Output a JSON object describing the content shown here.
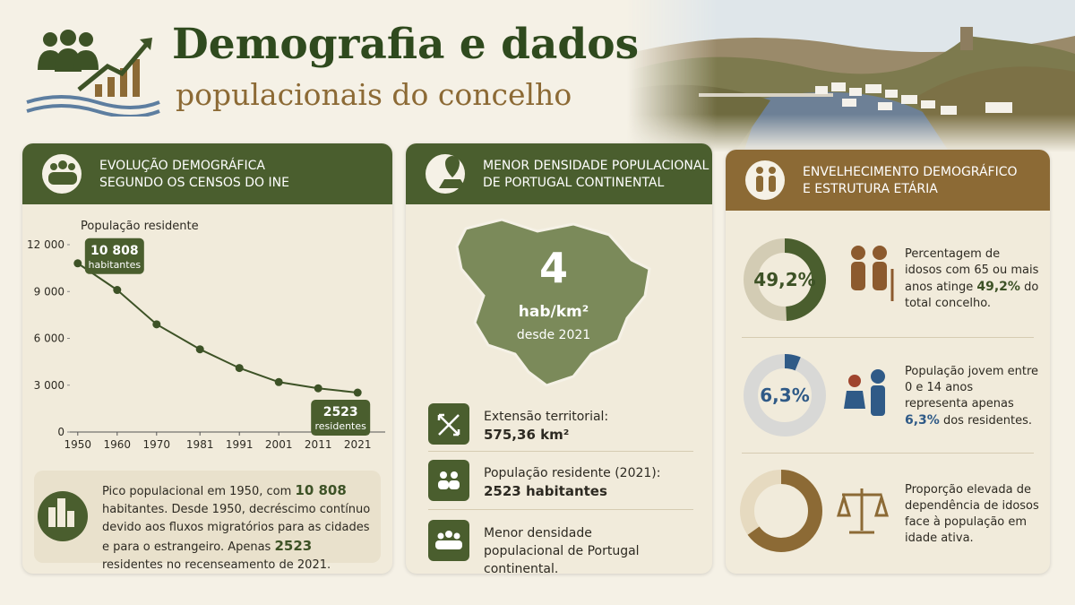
{
  "header": {
    "title": "Demografia e dados",
    "subtitle": "populacionais do concelho"
  },
  "panel1": {
    "heading_lines": [
      "EVOLUÇÃO DEMOGRÁFICA",
      "SEGUNDO OS CENSOS DO INE"
    ],
    "summary_parts": [
      "Pico populacional em 1950, com ",
      "10 808",
      " habitantes. Desde 1950, decréscimo contínuo devido aos fluxos migratórios para as cidades e para o estrangeiro. Apenas ",
      "2523",
      " residentes no recenseamento de 2021."
    ]
  },
  "chart_data": {
    "type": "line",
    "y_label": "População residente",
    "x": [
      1950,
      1960,
      1970,
      1981,
      1991,
      2001,
      2011,
      2021
    ],
    "values": [
      10808,
      9100,
      6900,
      5300,
      4100,
      3200,
      2800,
      2523
    ],
    "value_labels": [
      "10 808",
      null,
      null,
      null,
      null,
      null,
      null,
      "2523"
    ],
    "value_label_notes": [
      "habitantes",
      null,
      null,
      null,
      null,
      null,
      null,
      "residentes"
    ],
    "color": "#3d5226",
    "xlim": [
      1948,
      2028
    ],
    "xticks": [
      1950,
      1960,
      1970,
      1981,
      1991,
      2001,
      2011,
      2021
    ],
    "ylim": [
      0,
      12000
    ],
    "yticks": [
      0,
      {
        "value": 3000,
        "label": "3 000"
      },
      {
        "value": 6000,
        "label": "6 000"
      },
      {
        "value": 9000,
        "label": "9 000"
      },
      {
        "value": 12000,
        "label": "12 000"
      }
    ],
    "grid": false
  },
  "panel2": {
    "heading_lines": [
      "MENOR DENSIDADE POPULACIONAL",
      "DE PORTUGAL CONTINENTAL"
    ],
    "density": {
      "value": 4,
      "unit": "hab/km²",
      "since": "desde 2021"
    },
    "items": [
      {
        "label": "Extensão territorial:",
        "value": "575,36 km²"
      },
      {
        "label": "População residente (2021):",
        "value": "2523 habitantes"
      },
      {
        "label": "Menor densidade populacional de Portugal continental."
      }
    ]
  },
  "panel3": {
    "heading_lines": [
      "ENVELHECIMENTO DEMOGRÁFICO",
      "E ESTRUTURA ETÁRIA"
    ],
    "items": [
      {
        "value": 49.2,
        "value_label": "49,2%",
        "color": "#4a5e2e",
        "track": "#d3ccb4",
        "text_parts": [
          "Percentagem de idosos com 65 ou mais anos atinge ",
          "49,2%",
          " do total concelho."
        ]
      },
      {
        "value": 6.3,
        "value_label": "6,3%",
        "color": "#2f5a87",
        "track": "#d8d8d6",
        "text_parts": [
          "População jovem entre 0 e 14 anos representa apenas ",
          "6,3%",
          " dos residentes."
        ]
      },
      {
        "value": 65,
        "color": "#8c6a35",
        "track": "#e6dac0",
        "text_parts": [
          "Proporção elevada de dependência de idosos face à população em idade ativa."
        ]
      }
    ]
  }
}
